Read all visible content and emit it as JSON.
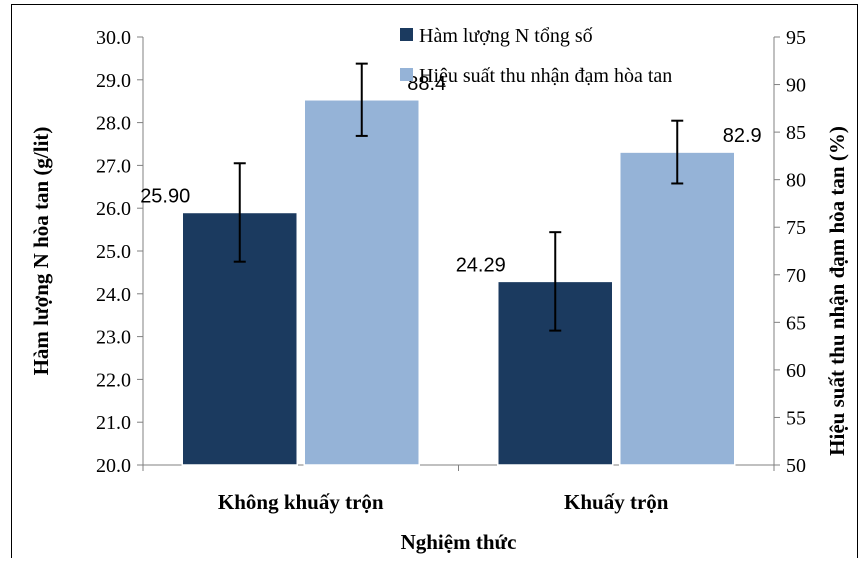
{
  "chart_data": {
    "type": "bar",
    "categories": [
      "Không khuấy trộn",
      "Khuấy trộn"
    ],
    "xlabel": "Nghiệm thức",
    "ylabel": "Hàm lượng N hòa tan (g/lit)",
    "ylabel_right": "Hiệu suất thu nhận đạm hòa tan (%)",
    "ylim": [
      20.0,
      30.0
    ],
    "ylim_right": [
      50,
      95
    ],
    "yticks": [
      "20.0",
      "21.0",
      "22.0",
      "23.0",
      "24.0",
      "25.0",
      "26.0",
      "27.0",
      "28.0",
      "29.0",
      "30.0"
    ],
    "yticks_right": [
      "50",
      "55",
      "60",
      "65",
      "70",
      "75",
      "80",
      "85",
      "90",
      "95"
    ],
    "legend_position": "top-right",
    "grid": false,
    "series": [
      {
        "name": "Hàm lượng N tổng số",
        "axis": "left",
        "color": "#1b3a5f",
        "values": [
          25.9,
          24.29
        ],
        "labels": [
          "25.90",
          "24.29"
        ],
        "error": [
          1.15,
          1.15
        ]
      },
      {
        "name": "Hiệu suất thu nhận đạm hòa tan",
        "axis": "right",
        "color": "#95b3d7",
        "values": [
          88.4,
          82.9
        ],
        "labels": [
          "88.4",
          "82.9"
        ],
        "error": [
          3.8,
          3.3
        ]
      }
    ]
  }
}
